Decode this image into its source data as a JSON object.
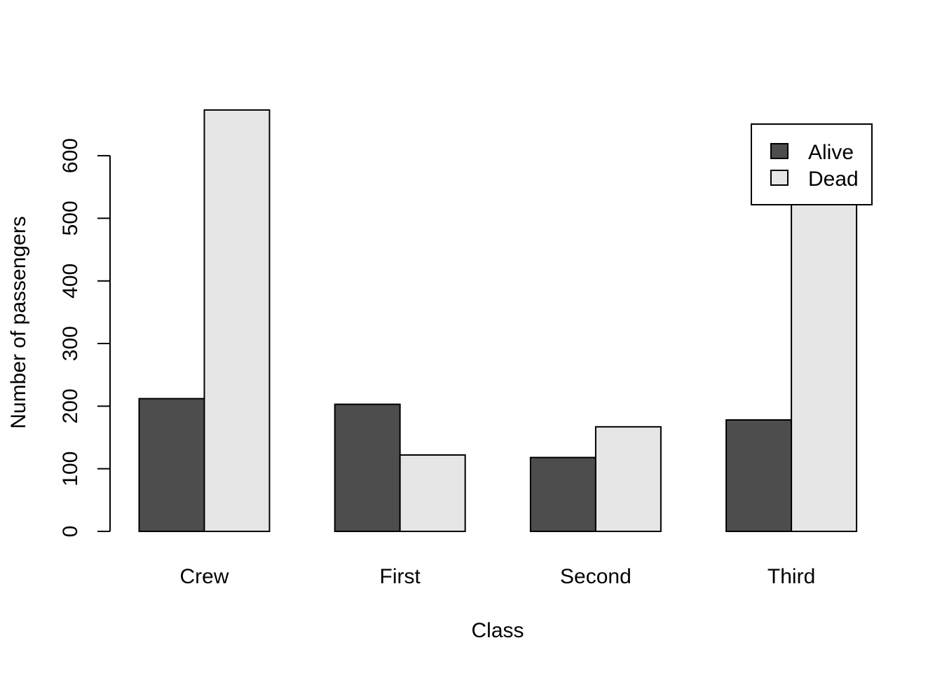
{
  "chart_data": {
    "type": "bar",
    "categories": [
      "Crew",
      "First",
      "Second",
      "Third"
    ],
    "series": [
      {
        "name": "Alive",
        "values": [
          212,
          203,
          118,
          178
        ],
        "color": "#4d4d4d"
      },
      {
        "name": "Dead",
        "values": [
          673,
          122,
          167,
          528
        ],
        "color": "#e6e6e6"
      }
    ],
    "xlabel": "Class",
    "ylabel": "Number of passengers",
    "ylim": [
      0,
      673
    ],
    "yticks": [
      0,
      100,
      200,
      300,
      400,
      500,
      600
    ],
    "grid": false,
    "legend_position": "top-right"
  }
}
